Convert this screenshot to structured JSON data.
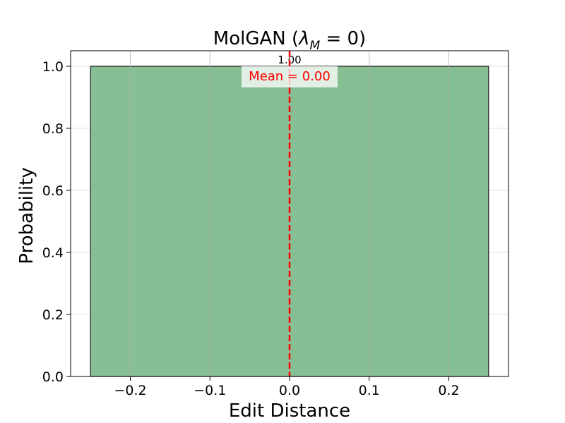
{
  "chart_data": {
    "type": "bar",
    "title_main": "MolGAN (",
    "title_symbol": "λ",
    "title_subscript": "M",
    "title_tail": " = 0)",
    "xlabel": "Edit Distance",
    "ylabel": "Probability",
    "xlim": [
      -0.275,
      0.275
    ],
    "ylim": [
      0,
      1.05
    ],
    "xticks": [
      -0.2,
      -0.1,
      0.0,
      0.1,
      0.2
    ],
    "xtick_labels": [
      "−0.2",
      "−0.1",
      "0.0",
      "0.1",
      "0.2"
    ],
    "yticks": [
      0.0,
      0.2,
      0.4,
      0.6,
      0.8,
      1.0
    ],
    "ytick_labels": [
      "0.0",
      "0.2",
      "0.4",
      "0.6",
      "0.8",
      "1.0"
    ],
    "bars": [
      {
        "x0": -0.25,
        "x1": 0.25,
        "value": 1.0,
        "label": "1.00"
      }
    ],
    "mean_line": {
      "x": 0.0,
      "label": "Mean = 0.00",
      "color": "#ff0000"
    },
    "grid": true,
    "colors": {
      "bar_fill": "#86bf93",
      "bar_edge": "#1a1a1a",
      "grid": "#e0e0e0"
    }
  }
}
